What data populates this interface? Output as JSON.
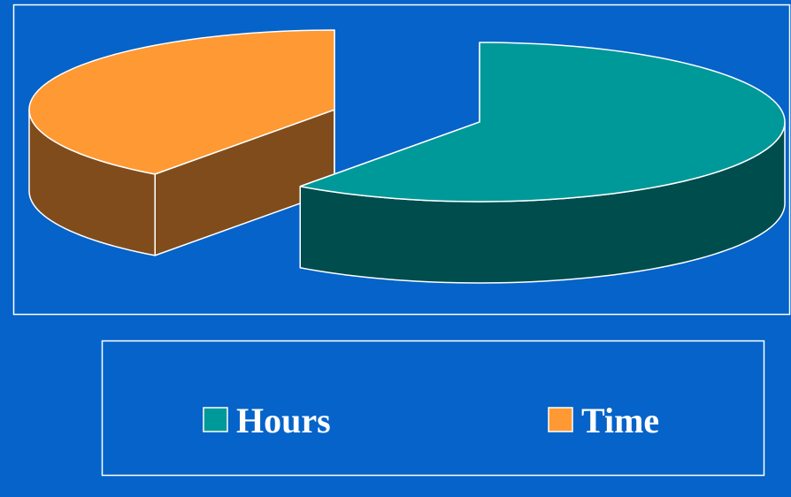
{
  "chart_data": {
    "type": "pie",
    "categories": [
      "Hours",
      "Time"
    ],
    "values": [
      60,
      40
    ],
    "colors": [
      "#009999",
      "#ff9933"
    ],
    "side_colors": [
      "#004d4d",
      "#804c1c"
    ],
    "legend": "bottom"
  }
}
